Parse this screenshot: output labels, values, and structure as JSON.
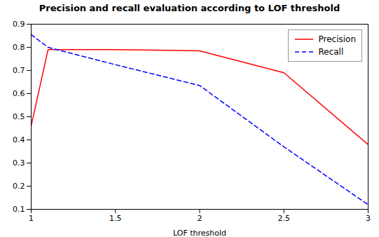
{
  "chart_data": {
    "type": "line",
    "title": "Precision and recall evaluation according to LOF threshold",
    "xlabel": "LOF threshold",
    "xlim": [
      1,
      3
    ],
    "ylim": [
      0.1,
      0.9
    ],
    "xticks": [
      1,
      1.5,
      2,
      2.5,
      3
    ],
    "yticks": [
      0.1,
      0.2,
      0.3,
      0.4,
      0.5,
      0.6,
      0.7,
      0.8,
      0.9
    ],
    "series": [
      {
        "name": "Precision",
        "color": "red",
        "line_style": "solid",
        "x": [
          1.0,
          1.1,
          1.2,
          1.5,
          2.0,
          2.5,
          3.0
        ],
        "values": [
          0.46,
          0.79,
          0.79,
          0.79,
          0.785,
          0.69,
          0.38
        ]
      },
      {
        "name": "Recall",
        "color": "blue",
        "line_style": "dashed",
        "x": [
          1.0,
          1.1,
          1.5,
          2.0,
          2.5,
          3.0
        ],
        "values": [
          0.855,
          0.8,
          0.725,
          0.635,
          0.37,
          0.12
        ]
      }
    ],
    "legend": "upper right",
    "grid": false
  }
}
